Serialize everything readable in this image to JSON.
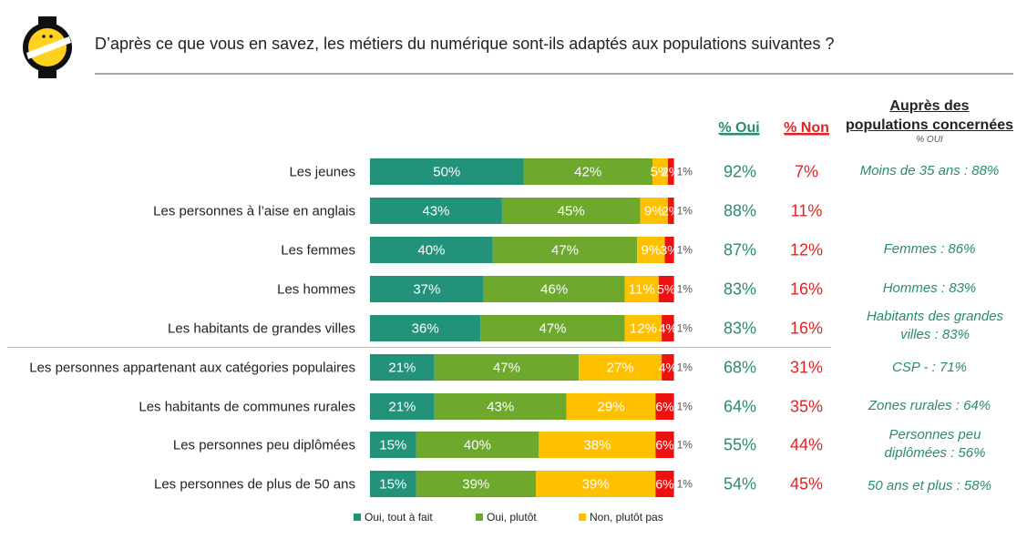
{
  "title": "D’après ce que vous en savez, les métiers du numérique sont-ils adaptés aux populations suivantes ?",
  "headers": {
    "oui": "% Oui",
    "non": "% Non",
    "right_line1": "Auprès des",
    "right_line2": "populations concernées",
    "right_sub": "% OUI"
  },
  "colors": {
    "oui_tout_a_fait": "#23927a",
    "oui_plutot": "#6ea92e",
    "non_plutot_pas": "#ffc000",
    "non_pas_du_tout": "#ee1111",
    "oui_text": "#2a8a72",
    "non_text": "#e32222"
  },
  "chart_data": {
    "type": "bar",
    "orientation": "horizontal",
    "stacked": true,
    "xlim": [
      0,
      100
    ],
    "categories": [
      "Les jeunes",
      "Les personnes à l’aise en anglais",
      "Les femmes",
      "Les hommes",
      "Les habitants de grandes villes",
      "Les personnes appartenant aux catégories populaires",
      "Les habitants de communes rurales",
      "Les personnes peu diplômées",
      "Les personnes de plus de 50 ans"
    ],
    "series": [
      {
        "name": "Oui, tout à fait",
        "values": [
          50,
          43,
          40,
          37,
          36,
          21,
          21,
          15,
          15
        ]
      },
      {
        "name": "Oui, plutôt",
        "values": [
          42,
          45,
          47,
          46,
          47,
          47,
          43,
          40,
          39
        ]
      },
      {
        "name": "Non, plutôt pas",
        "values": [
          5,
          9,
          9,
          11,
          12,
          27,
          29,
          38,
          39
        ]
      },
      {
        "values": [
          2,
          2,
          3,
          5,
          4,
          4,
          6,
          6,
          6
        ]
      }
    ],
    "residual_labels": [
      "1%",
      "1%",
      "1%",
      "1%",
      "1%",
      "1%",
      "1%",
      "1%",
      "1%"
    ],
    "oui_totals": [
      "92%",
      "88%",
      "87%",
      "83%",
      "83%",
      "68%",
      "64%",
      "55%",
      "54%"
    ],
    "non_totals": [
      "7%",
      "11%",
      "12%",
      "16%",
      "16%",
      "31%",
      "35%",
      "44%",
      "45%"
    ],
    "legend": [
      "Oui, tout à fait",
      "Oui, plutôt",
      "Non, plutôt pas"
    ],
    "legend_position": "bottom"
  },
  "notes": [
    "Moins de 35 ans : 88%",
    "",
    "Femmes : 86%",
    "Hommes : 83%",
    "Habitants des grandes villes  : 83%",
    "CSP - : 71%",
    "Zones rurales : 64%",
    "Personnes peu diplômées : 56%",
    "50 ans et plus : 58%"
  ]
}
